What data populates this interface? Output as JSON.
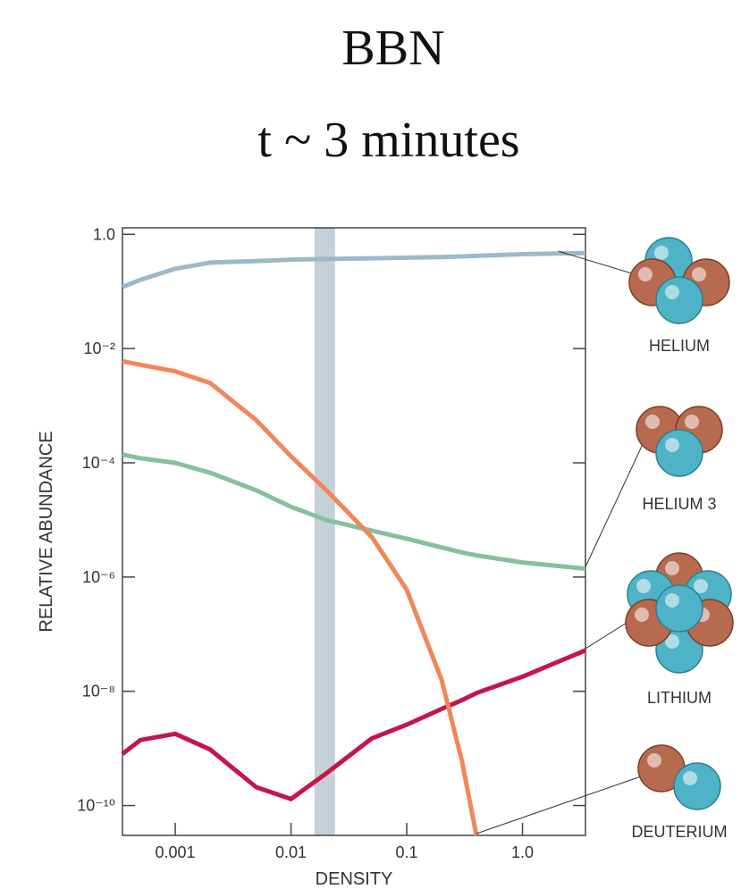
{
  "chart_data": {
    "type": "line",
    "title": "BBN",
    "subtitle": "t ~ 3 minutes",
    "x_label": "DENSITY",
    "y_label": "RELATIVE ABUNDANCE",
    "x_scale": "log",
    "y_scale": "log",
    "x": [
      0.00035,
      0.0005,
      0.001,
      0.002,
      0.005,
      0.01,
      0.02,
      0.05,
      0.1,
      0.2,
      0.3,
      0.4,
      1,
      3.5
    ],
    "series": [
      {
        "name": "HELIUM",
        "color": "#9db8c9",
        "values": [
          0.12,
          0.16,
          0.25,
          0.32,
          0.34,
          0.36,
          0.37,
          0.38,
          0.39,
          0.4,
          0.41,
          0.42,
          0.45,
          0.47
        ]
      },
      {
        "name": "HELIUM 3",
        "color": "#86c09d",
        "values": [
          0.00014,
          0.00012,
          0.0001,
          6.7e-05,
          3.3e-05,
          1.7e-05,
          1e-05,
          6.5e-06,
          4.7e-06,
          3.3e-06,
          2.7e-06,
          2.4e-06,
          1.8e-06,
          1.4e-06
        ]
      },
      {
        "name": "LITHIUM",
        "color": "#c3174a",
        "values": [
          8e-10,
          1.4e-09,
          1.8e-09,
          9.6e-10,
          2.1e-10,
          1.3e-10,
          3.6e-10,
          1.5e-09,
          2.6e-09,
          4.9e-09,
          7e-09,
          9.3e-09,
          1.8e-08,
          5.2e-08
        ]
      },
      {
        "name": "DEUTERIUM",
        "color": "#f0875a",
        "values": [
          0.006,
          0.0052,
          0.004,
          0.0025,
          0.00056,
          0.00013,
          3.4e-05,
          5e-06,
          6e-07,
          1.6e-08,
          6e-10,
          3e-11,
          null,
          null
        ]
      }
    ],
    "band": [
      0.016,
      0.024
    ],
    "band_color": "#c5d0d8",
    "xlim": [
      0.00035,
      3.5
    ],
    "ylim": [
      3e-11,
      1.3
    ],
    "xticks": [
      0.001,
      0.01,
      0.1,
      {
        "value": 1,
        "label": "1.0"
      }
    ],
    "yticks": [
      {
        "value": 1,
        "label": "1.0"
      },
      {
        "value": 0.01,
        "label": "10⁻²"
      },
      {
        "value": 0.0001,
        "label": "10⁻⁴"
      },
      {
        "value": 1e-06,
        "label": "10⁻⁶"
      },
      {
        "value": 1e-08,
        "label": "10⁻⁸"
      },
      {
        "value": 1e-10,
        "label": "10⁻¹⁰"
      }
    ]
  }
}
